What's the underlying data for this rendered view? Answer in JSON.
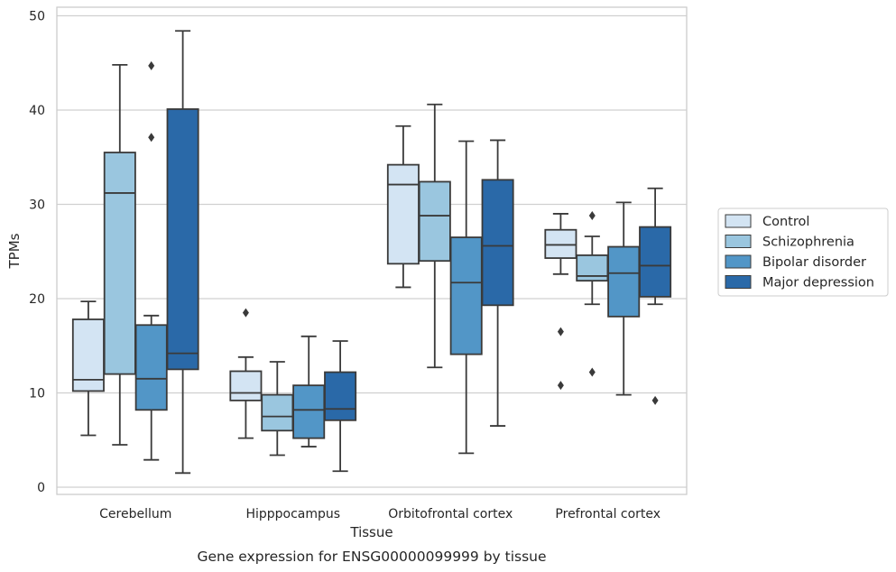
{
  "chart_data": {
    "type": "box",
    "caption": "Gene expression for ENSG00000099999 by tissue",
    "xlabel": "Tissue",
    "ylabel": "TPMs",
    "ylim": [
      -0.8,
      50.8
    ],
    "yticks": [
      0,
      10,
      20,
      30,
      40,
      50
    ],
    "grid": "horizontal",
    "legend_position": "right",
    "categories": [
      "Cerebellum",
      "Hipppocampus",
      "Orbitofrontal cortex",
      "Prefrontal cortex"
    ],
    "series": [
      {
        "name": "Control",
        "color": "#d3e4f3",
        "boxes": [
          {
            "whislo": 5.5,
            "q1": 10.2,
            "med": 11.4,
            "q3": 17.8,
            "whishi": 19.7,
            "fliers": []
          },
          {
            "whislo": 5.2,
            "q1": 9.2,
            "med": 10.0,
            "q3": 12.3,
            "whishi": 13.8,
            "fliers": [
              18.5
            ]
          },
          {
            "whislo": 21.2,
            "q1": 23.7,
            "med": 32.1,
            "q3": 34.2,
            "whishi": 38.3,
            "fliers": []
          },
          {
            "whislo": 22.6,
            "q1": 24.3,
            "med": 25.7,
            "q3": 27.3,
            "whishi": 29.0,
            "fliers": [
              16.5,
              10.8
            ]
          }
        ]
      },
      {
        "name": "Schizophrenia",
        "color": "#9ac6df",
        "boxes": [
          {
            "whislo": 4.5,
            "q1": 12.0,
            "med": 31.2,
            "q3": 35.5,
            "whishi": 44.8,
            "fliers": []
          },
          {
            "whislo": 3.4,
            "q1": 6.0,
            "med": 7.5,
            "q3": 9.8,
            "whishi": 13.3,
            "fliers": []
          },
          {
            "whislo": 12.7,
            "q1": 24.0,
            "med": 28.8,
            "q3": 32.4,
            "whishi": 40.6,
            "fliers": []
          },
          {
            "whislo": 19.4,
            "q1": 21.9,
            "med": 22.4,
            "q3": 24.6,
            "whishi": 26.6,
            "fliers": [
              28.8,
              12.2
            ]
          }
        ]
      },
      {
        "name": "Bipolar disorder",
        "color": "#5296c7",
        "boxes": [
          {
            "whislo": 2.9,
            "q1": 8.2,
            "med": 11.5,
            "q3": 17.2,
            "whishi": 18.2,
            "fliers": [
              44.7,
              37.1
            ]
          },
          {
            "whislo": 4.3,
            "q1": 5.2,
            "med": 8.2,
            "q3": 10.8,
            "whishi": 16.0,
            "fliers": []
          },
          {
            "whislo": 3.6,
            "q1": 14.1,
            "med": 21.7,
            "q3": 26.5,
            "whishi": 36.7,
            "fliers": []
          },
          {
            "whislo": 9.8,
            "q1": 18.1,
            "med": 22.7,
            "q3": 25.5,
            "whishi": 30.2,
            "fliers": []
          }
        ]
      },
      {
        "name": "Major depression",
        "color": "#2a69a8",
        "boxes": [
          {
            "whislo": 1.5,
            "q1": 12.5,
            "med": 14.2,
            "q3": 40.1,
            "whishi": 48.4,
            "fliers": []
          },
          {
            "whislo": 1.7,
            "q1": 7.1,
            "med": 8.3,
            "q3": 12.2,
            "whishi": 15.5,
            "fliers": []
          },
          {
            "whislo": 6.5,
            "q1": 19.3,
            "med": 25.6,
            "q3": 32.6,
            "whishi": 36.8,
            "fliers": []
          },
          {
            "whislo": 19.4,
            "q1": 20.2,
            "med": 23.5,
            "q3": 27.6,
            "whishi": 31.7,
            "fliers": [
              9.2
            ]
          }
        ]
      }
    ],
    "colors": {
      "line": "#3a3a3a",
      "grid": "#d0d0d0",
      "frame": "#cccccc"
    }
  }
}
